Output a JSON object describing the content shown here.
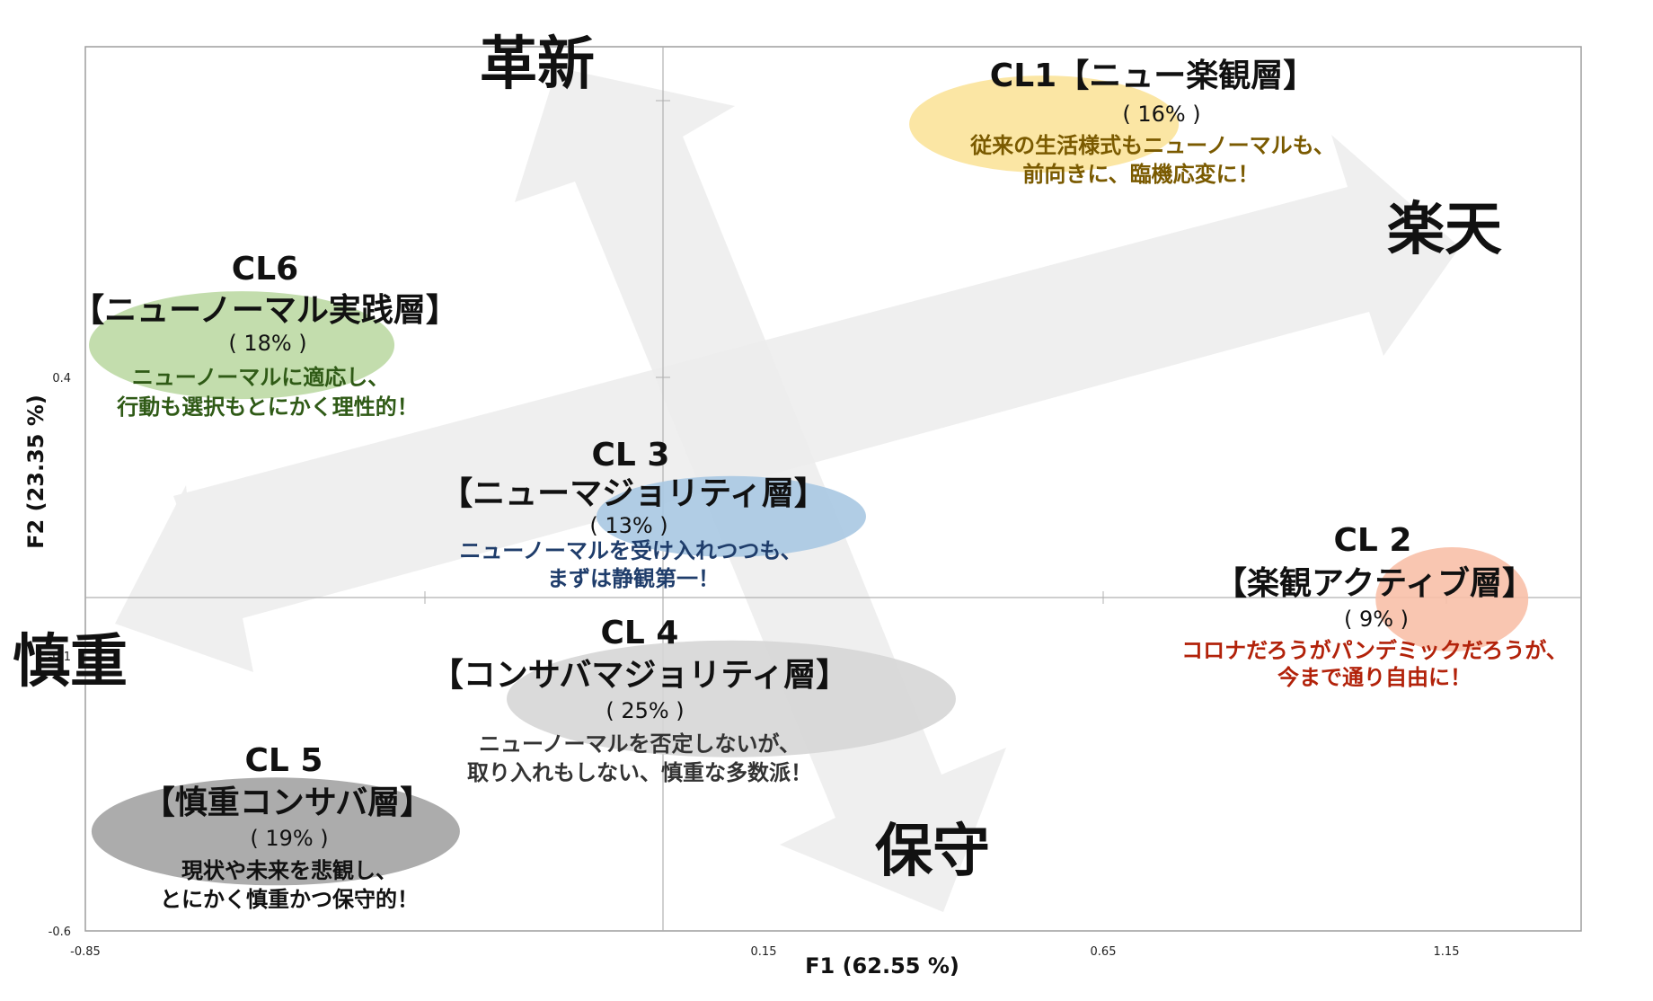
{
  "chart_data": {
    "type": "scatter",
    "xlabel": "F1 (62.55 %)",
    "ylabel": "F2 (23.35 %)",
    "xlim": [
      -0.85,
      1.35
    ],
    "ylim": [
      -0.6,
      1.0
    ],
    "x_ticks": [
      "-0.85",
      "0.15",
      "0.65",
      "1.15"
    ],
    "y_ticks": [
      "0.4",
      "-0.1",
      "-0.6"
    ],
    "grid": false,
    "directions": {
      "up": "革新",
      "down": "保守",
      "left": "慎重",
      "right": "楽天"
    },
    "clusters": [
      {
        "name": "CL1【ニュー楽観層】",
        "share": "( 16% )",
        "desc": [
          "従来の生活様式もニューノーマルも、",
          "前向きに、臨機応変に！"
        ],
        "x": 0.56,
        "y": 0.86,
        "color": "#fbe39a",
        "text_color": "#7a5a00"
      },
      {
        "name": "CL 2",
        "subtitle": "【楽観アクティブ層】",
        "share": "( 9% )",
        "desc": [
          "コロナだろうがパンデミックだろうが、",
          "今まで通り自由に！"
        ],
        "x": 1.16,
        "y": 0.0,
        "color": "#f8c0a8",
        "text_color": "#b2220a"
      },
      {
        "name": "CL 3",
        "subtitle": "【ニューマジョリティ層】",
        "share": "( 13% )",
        "desc": [
          "ニューノーマルを受け入れつつも、",
          "まずは静観第一！"
        ],
        "x": 0.1,
        "y": 0.15,
        "color": "#a8c8e2",
        "text_color": "#1f3d6b"
      },
      {
        "name": "CL 4",
        "subtitle": "【コンサバマジョリティ層】",
        "share": "( 25% )",
        "desc": [
          "ニューノーマルを否定しないが、",
          "取り入れもしない、慎重な多数派！"
        ],
        "x": 0.1,
        "y": -0.18,
        "color": "#d6d6d6",
        "text_color": "#333333"
      },
      {
        "name": "CL 5",
        "subtitle": "【慎重コンサバ層】",
        "share": "( 19% )",
        "desc": [
          "現状や未来を悲観し、",
          "とにかく慎重かつ保守的！"
        ],
        "x": -0.57,
        "y": -0.42,
        "color": "#a3a3a3",
        "text_color": "#111111"
      },
      {
        "name": "CL6",
        "subtitle": "【ニューノーマル実践層】",
        "share": "( 18% )",
        "desc": [
          "ニューノーマルに適応し、",
          "行動も選択もとにかく理性的！"
        ],
        "x": -0.62,
        "y": 0.46,
        "color": "#bcd9a4",
        "text_color": "#2f5a16"
      }
    ]
  }
}
